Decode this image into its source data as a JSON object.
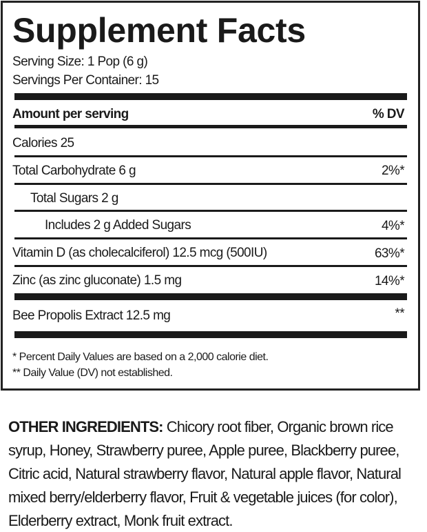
{
  "title": "Supplement Facts",
  "serving_size": "Serving Size: 1 Pop (6 g)",
  "servings_per_container": "Servings Per Container:  15",
  "header": {
    "amount": "Amount per serving",
    "dv": "% DV"
  },
  "rows": [
    {
      "label": "Calories  25",
      "dv": ""
    },
    {
      "label": "Total Carbohydrate  6 g",
      "dv": "2%*"
    },
    {
      "label": "Total Sugars  2 g",
      "dv": ""
    },
    {
      "label": "Includes 2 g Added Sugars",
      "dv": "4%*"
    },
    {
      "label": "Vitamin D (as cholecalciferol)  12.5 mcg (500IU)",
      "dv": "63%*"
    },
    {
      "label": "Zinc (as zinc gluconate)  1.5 mg",
      "dv": "14%*"
    },
    {
      "label": "Bee Propolis Extract  12.5 mg",
      "dv": "**"
    }
  ],
  "footnotes": [
    "* Percent Daily Values are based on a 2,000 calorie diet.",
    "** Daily Value (DV) not established."
  ],
  "other_ingredients": {
    "label": "OTHER INGREDIENTS:",
    "text": " Chicory root fiber, Organic brown rice syrup, Honey, Strawberry puree, Apple puree, Blackberry puree, Citric acid, Natural strawberry flavor, Natural apple flavor, Natural mixed berry/elderberry flavor, Fruit & vegetable juices (for color), Elderberry extract, Monk fruit extract."
  }
}
